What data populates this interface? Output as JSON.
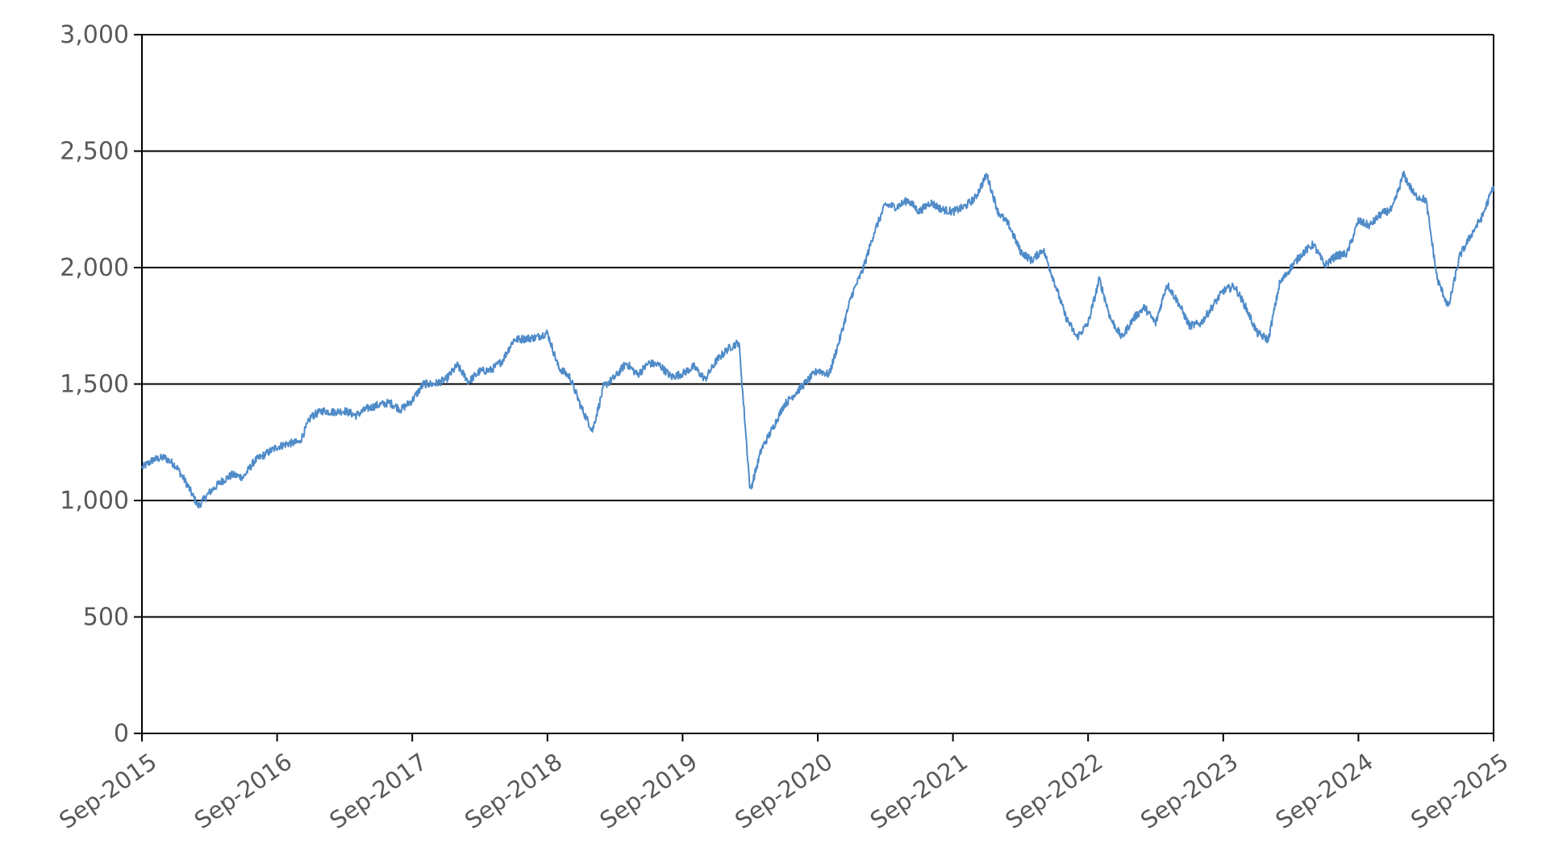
{
  "chart_data": {
    "type": "line",
    "title": "",
    "xlabel": "",
    "ylabel": "",
    "ylim": [
      0,
      3000
    ],
    "yticks": [
      0,
      500,
      1000,
      1500,
      2000,
      2500,
      3000
    ],
    "ytick_labels": [
      "0",
      "500",
      "1,000",
      "1,500",
      "2,000",
      "2,500",
      "3,000"
    ],
    "xlim": [
      "2015-09",
      "2025-09"
    ],
    "xtick_labels": [
      "Sep-2015",
      "Sep-2016",
      "Sep-2017",
      "Sep-2018",
      "Sep-2019",
      "Sep-2020",
      "Sep-2021",
      "Sep-2022",
      "Sep-2023",
      "Sep-2024",
      "Sep-2025"
    ],
    "grid": "horizontal",
    "legend": "none",
    "series": [
      {
        "color": "#4f8bc8",
        "points": [
          [
            "2015-09",
            1140
          ],
          [
            "2015-10",
            1175
          ],
          [
            "2015-11",
            1185
          ],
          [
            "2015-12",
            1150
          ],
          [
            "2016-01",
            1070
          ],
          [
            "2016-02",
            975
          ],
          [
            "2016-03",
            1035
          ],
          [
            "2016-04",
            1080
          ],
          [
            "2016-05",
            1110
          ],
          [
            "2016-06",
            1100
          ],
          [
            "2016-07",
            1170
          ],
          [
            "2016-08",
            1200
          ],
          [
            "2016-09",
            1230
          ],
          [
            "2016-10",
            1245
          ],
          [
            "2016-11",
            1250
          ],
          [
            "2016-12",
            1360
          ],
          [
            "2017-01",
            1385
          ],
          [
            "2017-02",
            1380
          ],
          [
            "2017-03",
            1385
          ],
          [
            "2017-04",
            1365
          ],
          [
            "2017-05",
            1395
          ],
          [
            "2017-06",
            1410
          ],
          [
            "2017-07",
            1420
          ],
          [
            "2017-08",
            1390
          ],
          [
            "2017-09",
            1430
          ],
          [
            "2017-10",
            1500
          ],
          [
            "2017-11",
            1500
          ],
          [
            "2017-12",
            1520
          ],
          [
            "2018-01",
            1580
          ],
          [
            "2018-02",
            1510
          ],
          [
            "2018-03",
            1555
          ],
          [
            "2018-04",
            1560
          ],
          [
            "2018-05",
            1600
          ],
          [
            "2018-06",
            1690
          ],
          [
            "2018-07",
            1695
          ],
          [
            "2018-08",
            1700
          ],
          [
            "2018-09",
            1720
          ],
          [
            "2018-10",
            1570
          ],
          [
            "2018-11",
            1530
          ],
          [
            "2018-12",
            1400
          ],
          [
            "2019-01",
            1300
          ],
          [
            "2019-02",
            1490
          ],
          [
            "2019-03",
            1530
          ],
          [
            "2019-04",
            1590
          ],
          [
            "2019-05",
            1540
          ],
          [
            "2019-06",
            1590
          ],
          [
            "2019-07",
            1580
          ],
          [
            "2019-08",
            1530
          ],
          [
            "2019-09",
            1545
          ],
          [
            "2019-10",
            1575
          ],
          [
            "2019-11",
            1520
          ],
          [
            "2019-12",
            1600
          ],
          [
            "2020-01",
            1650
          ],
          [
            "2020-02",
            1680
          ],
          [
            "2020-03",
            1040
          ],
          [
            "2020-04",
            1220
          ],
          [
            "2020-05",
            1310
          ],
          [
            "2020-06",
            1410
          ],
          [
            "2020-07",
            1460
          ],
          [
            "2020-08",
            1510
          ],
          [
            "2020-09",
            1560
          ],
          [
            "2020-10",
            1540
          ],
          [
            "2020-11",
            1700
          ],
          [
            "2020-12",
            1880
          ],
          [
            "2021-01",
            1990
          ],
          [
            "2021-02",
            2150
          ],
          [
            "2021-03",
            2270
          ],
          [
            "2021-04",
            2260
          ],
          [
            "2021-05",
            2290
          ],
          [
            "2021-06",
            2240
          ],
          [
            "2021-07",
            2280
          ],
          [
            "2021-08",
            2250
          ],
          [
            "2021-09",
            2240
          ],
          [
            "2021-10",
            2260
          ],
          [
            "2021-11",
            2300
          ],
          [
            "2021-12",
            2400
          ],
          [
            "2022-01",
            2240
          ],
          [
            "2022-02",
            2180
          ],
          [
            "2022-03",
            2070
          ],
          [
            "2022-04",
            2030
          ],
          [
            "2022-05",
            2080
          ],
          [
            "2022-06",
            1940
          ],
          [
            "2022-07",
            1790
          ],
          [
            "2022-08",
            1700
          ],
          [
            "2022-09",
            1760
          ],
          [
            "2022-10",
            1950
          ],
          [
            "2022-11",
            1780
          ],
          [
            "2022-12",
            1700
          ],
          [
            "2023-01",
            1780
          ],
          [
            "2023-02",
            1830
          ],
          [
            "2023-03",
            1760
          ],
          [
            "2023-04",
            1930
          ],
          [
            "2023-05",
            1850
          ],
          [
            "2023-06",
            1750
          ],
          [
            "2023-07",
            1760
          ],
          [
            "2023-08",
            1830
          ],
          [
            "2023-09",
            1900
          ],
          [
            "2023-10",
            1920
          ],
          [
            "2023-11",
            1830
          ],
          [
            "2023-12",
            1720
          ],
          [
            "2024-01",
            1690
          ],
          [
            "2024-02",
            1930
          ],
          [
            "2024-03",
            2000
          ],
          [
            "2024-04",
            2060
          ],
          [
            "2024-05",
            2100
          ],
          [
            "2024-06",
            2010
          ],
          [
            "2024-07",
            2050
          ],
          [
            "2024-08",
            2060
          ],
          [
            "2024-09",
            2200
          ],
          [
            "2024-10",
            2180
          ],
          [
            "2024-11",
            2230
          ],
          [
            "2024-12",
            2250
          ],
          [
            "2025-01",
            2400
          ],
          [
            "2025-02",
            2310
          ],
          [
            "2025-03",
            2290
          ],
          [
            "2025-04",
            1950
          ],
          [
            "2025-05",
            1830
          ],
          [
            "2025-06",
            2050
          ],
          [
            "2025-07",
            2140
          ],
          [
            "2025-08",
            2220
          ],
          [
            "2025-09",
            2350
          ]
        ]
      }
    ]
  }
}
